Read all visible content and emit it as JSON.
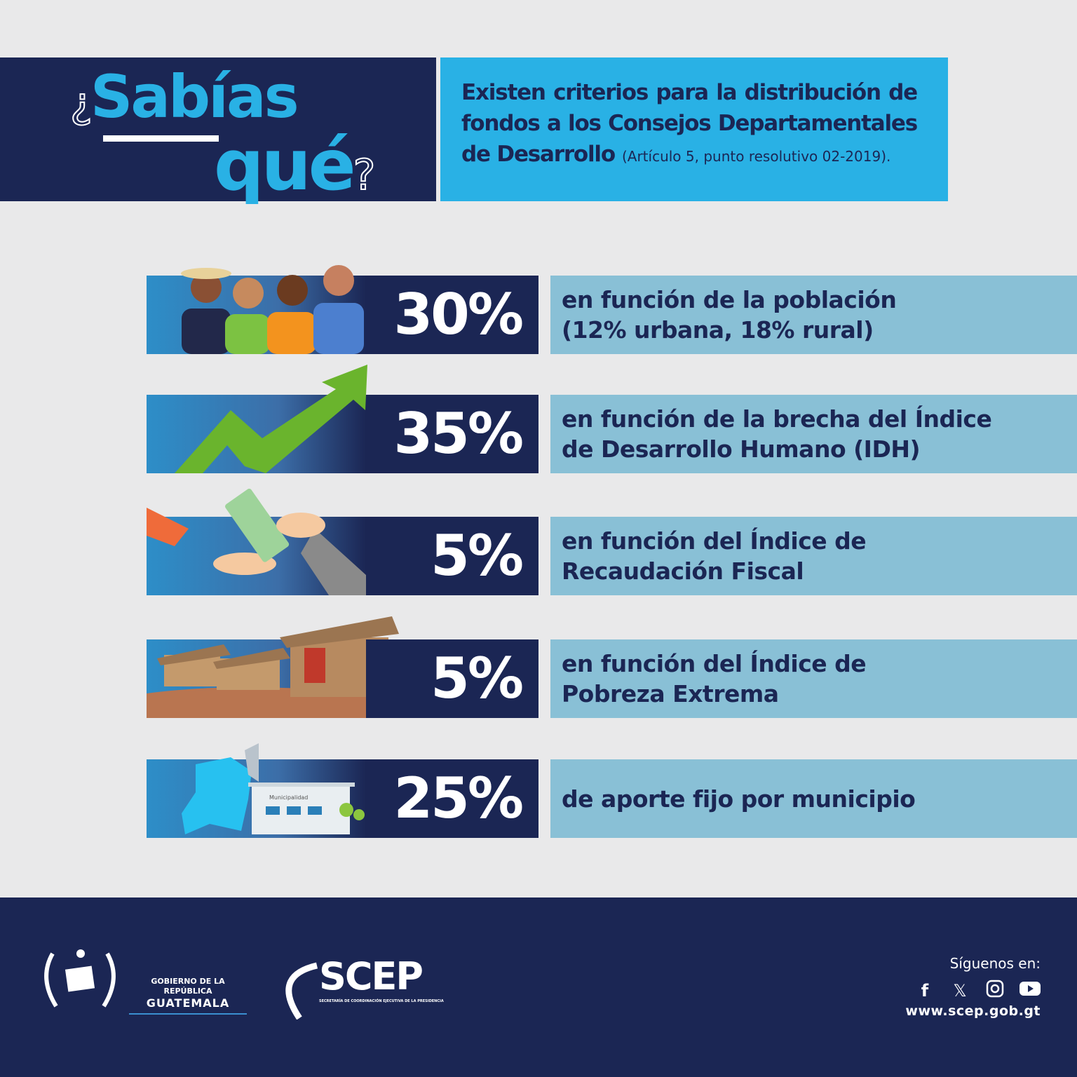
{
  "header": {
    "sabias": "Sabías",
    "que": "qué",
    "open_q": "¿",
    "close_q": "?",
    "intro": "Existen criterios para la distribución de fondos a los Consejos Departamentales de Desarrollo",
    "citation": "(Artículo 5, punto resolutivo 02-2019)."
  },
  "criteria": [
    {
      "percent": "30%",
      "line1": "en función de la población",
      "line2": "(12% urbana, 18% rural)",
      "icon": "people-icon"
    },
    {
      "percent": "35%",
      "line1": "en función de la brecha del Índice",
      "line2": "de Desarrollo Humano (IDH)",
      "icon": "growth-arrow-icon"
    },
    {
      "percent": "5%",
      "line1": "en función del Índice de",
      "line2": "Recaudación Fiscal",
      "icon": "money-handover-icon"
    },
    {
      "percent": "5%",
      "line1": "en función del Índice de",
      "line2": "Pobreza Extrema",
      "icon": "poor-houses-icon"
    },
    {
      "percent": "25%",
      "line1": "de aporte fijo por municipio",
      "line2": "",
      "icon": "municipality-icon",
      "building_label": "Municipalidad"
    }
  ],
  "footer": {
    "gov_line1": "GOBIERNO DE LA REPÚBLICA",
    "gov_line2": "GUATEMALA",
    "scep": "SCEP",
    "scep_sub": "SECRETARÍA DE COORDINACIÓN EJECUTIVA DE LA PRESIDENCIA",
    "follow": "Síguenos en:",
    "website": "www.scep.gob.gt",
    "social": [
      "facebook",
      "x",
      "instagram",
      "youtube"
    ]
  },
  "colors": {
    "navy": "#1b2654",
    "cyan": "#29b1e5",
    "light_blue": "#89c0d6",
    "background": "#e9e9ea"
  }
}
